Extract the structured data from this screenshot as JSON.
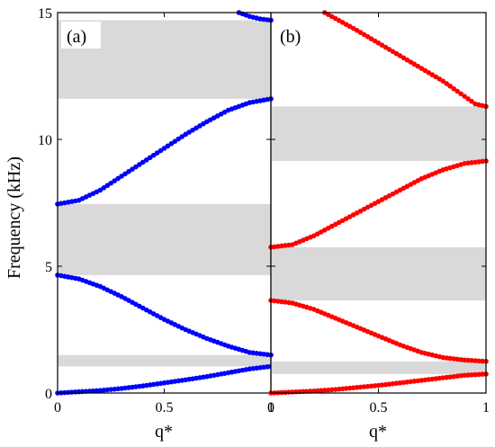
{
  "chart_data": [
    {
      "type": "scatter",
      "panel_label": "(a)",
      "xlabel": "q*",
      "ylabel": "Frequency (kHz)",
      "xlim": [
        0,
        1
      ],
      "ylim": [
        0,
        15
      ],
      "xticks": [
        "0",
        "0.5",
        "1"
      ],
      "yticks": [
        "0",
        "5",
        "10",
        "15"
      ],
      "band_gaps": [
        [
          1.05,
          1.5
        ],
        [
          4.65,
          7.45
        ],
        [
          11.6,
          14.7
        ]
      ],
      "series": [
        {
          "color": "#0000ff",
          "x": [
            0,
            0.1,
            0.2,
            0.3,
            0.4,
            0.5,
            0.6,
            0.7,
            0.8,
            0.9,
            1.0
          ],
          "y": [
            0.0,
            0.05,
            0.1,
            0.18,
            0.28,
            0.4,
            0.52,
            0.65,
            0.8,
            0.95,
            1.05
          ]
        },
        {
          "color": "#0000ff",
          "x": [
            0,
            0.1,
            0.2,
            0.3,
            0.4,
            0.5,
            0.6,
            0.7,
            0.8,
            0.9,
            1.0
          ],
          "y": [
            4.65,
            4.5,
            4.2,
            3.8,
            3.35,
            2.9,
            2.5,
            2.15,
            1.85,
            1.6,
            1.5
          ]
        },
        {
          "color": "#0000ff",
          "x": [
            0,
            0.1,
            0.2,
            0.3,
            0.4,
            0.5,
            0.6,
            0.7,
            0.8,
            0.9,
            1.0
          ],
          "y": [
            7.45,
            7.6,
            8.0,
            8.55,
            9.1,
            9.65,
            10.2,
            10.7,
            11.15,
            11.45,
            11.6
          ]
        },
        {
          "color": "#0000ff",
          "x": [
            0.85,
            0.9,
            0.95,
            1.0
          ],
          "y": [
            15.0,
            14.85,
            14.75,
            14.7
          ]
        }
      ]
    },
    {
      "type": "scatter",
      "panel_label": "(b)",
      "xlabel": "q*",
      "ylabel": "",
      "xlim": [
        0,
        1
      ],
      "ylim": [
        0,
        15
      ],
      "xticks": [
        "0",
        "0.5",
        "1"
      ],
      "yticks": [],
      "band_gaps": [
        [
          0.75,
          1.25
        ],
        [
          3.65,
          5.75
        ],
        [
          9.15,
          11.3
        ]
      ],
      "series": [
        {
          "color": "#ff0000",
          "x": [
            0,
            0.1,
            0.2,
            0.3,
            0.4,
            0.5,
            0.6,
            0.7,
            0.8,
            0.9,
            1.0
          ],
          "y": [
            0.0,
            0.04,
            0.08,
            0.14,
            0.22,
            0.3,
            0.4,
            0.5,
            0.6,
            0.7,
            0.75
          ]
        },
        {
          "color": "#ff0000",
          "x": [
            0,
            0.1,
            0.2,
            0.3,
            0.4,
            0.5,
            0.6,
            0.7,
            0.8,
            0.9,
            1.0
          ],
          "y": [
            3.65,
            3.55,
            3.3,
            2.95,
            2.6,
            2.25,
            1.9,
            1.6,
            1.4,
            1.3,
            1.25
          ]
        },
        {
          "color": "#ff0000",
          "x": [
            0,
            0.1,
            0.2,
            0.3,
            0.4,
            0.5,
            0.6,
            0.7,
            0.8,
            0.9,
            1.0
          ],
          "y": [
            5.75,
            5.85,
            6.2,
            6.65,
            7.1,
            7.55,
            8.0,
            8.45,
            8.8,
            9.05,
            9.15
          ]
        },
        {
          "color": "#ff0000",
          "x": [
            0.25,
            0.4,
            0.5,
            0.6,
            0.7,
            0.8,
            0.9,
            0.95,
            1.0
          ],
          "y": [
            15.0,
            14.3,
            13.8,
            13.3,
            12.8,
            12.3,
            11.7,
            11.4,
            11.3
          ]
        }
      ]
    }
  ],
  "colors": {
    "band_gap": "#d9d9d9",
    "frame": "#000000"
  }
}
